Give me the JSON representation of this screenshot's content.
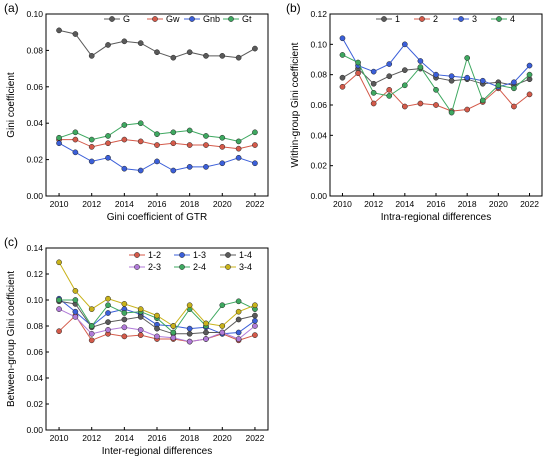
{
  "figure": {
    "panels": [
      {
        "panel_label": "(a)",
        "type": "line",
        "xlabel": "Gini coefficient of GTR",
        "ylabel": "Gini coefficient",
        "x": [
          2010,
          2011,
          2012,
          2013,
          2014,
          2015,
          2016,
          2017,
          2018,
          2019,
          2020,
          2021,
          2022
        ],
        "xlim": [
          2009.2,
          2022.8
        ],
        "xticks": [
          2010,
          2012,
          2014,
          2016,
          2018,
          2020,
          2022
        ],
        "ylim": [
          0.0,
          0.1
        ],
        "yticks": [
          0.0,
          0.02,
          0.04,
          0.06,
          0.08,
          0.1
        ],
        "ytick_decimals": 2,
        "legend_position": "top-right",
        "legend_cols": 4,
        "series": [
          {
            "name": "G",
            "color": "#5a5a5a",
            "values": [
              0.091,
              0.089,
              0.077,
              0.083,
              0.085,
              0.084,
              0.079,
              0.076,
              0.079,
              0.077,
              0.077,
              0.076,
              0.081
            ]
          },
          {
            "name": "Gw",
            "color": "#d45a4a",
            "values": [
              0.031,
              0.031,
              0.027,
              0.029,
              0.031,
              0.03,
              0.028,
              0.029,
              0.028,
              0.028,
              0.027,
              0.026,
              0.028
            ]
          },
          {
            "name": "Gnb",
            "color": "#3b5fd9",
            "values": [
              0.029,
              0.024,
              0.019,
              0.021,
              0.015,
              0.014,
              0.019,
              0.014,
              0.016,
              0.016,
              0.018,
              0.021,
              0.018
            ]
          },
          {
            "name": "Gt",
            "color": "#3ea860",
            "values": [
              0.032,
              0.035,
              0.031,
              0.033,
              0.039,
              0.04,
              0.034,
              0.035,
              0.036,
              0.033,
              0.032,
              0.03,
              0.035
            ]
          }
        ]
      },
      {
        "panel_label": "(b)",
        "type": "line",
        "xlabel": "Intra-regional differences",
        "ylabel": "Within-group Gini coefficient",
        "x": [
          2010,
          2011,
          2012,
          2013,
          2014,
          2015,
          2016,
          2017,
          2018,
          2019,
          2020,
          2021,
          2022
        ],
        "xlim": [
          2009.2,
          2022.8
        ],
        "xticks": [
          2010,
          2012,
          2014,
          2016,
          2018,
          2020,
          2022
        ],
        "ylim": [
          0.0,
          0.12
        ],
        "yticks": [
          0.0,
          0.02,
          0.04,
          0.06,
          0.08,
          0.1,
          0.12
        ],
        "ytick_decimals": 2,
        "legend_position": "top-right",
        "legend_cols": 4,
        "series": [
          {
            "name": "1",
            "color": "#5a5a5a",
            "values": [
              0.078,
              0.084,
              0.074,
              0.079,
              0.083,
              0.084,
              0.078,
              0.076,
              0.077,
              0.074,
              0.075,
              0.073,
              0.077
            ]
          },
          {
            "name": "2",
            "color": "#d45a4a",
            "values": [
              0.072,
              0.081,
              0.061,
              0.07,
              0.059,
              0.061,
              0.06,
              0.056,
              0.057,
              0.062,
              0.071,
              0.059,
              0.067
            ]
          },
          {
            "name": "3",
            "color": "#3b5fd9",
            "values": [
              0.104,
              0.086,
              0.082,
              0.087,
              0.1,
              0.089,
              0.08,
              0.079,
              0.078,
              0.076,
              0.072,
              0.075,
              0.086
            ]
          },
          {
            "name": "4",
            "color": "#3ea860",
            "values": [
              0.093,
              0.088,
              0.068,
              0.066,
              0.073,
              0.085,
              0.07,
              0.055,
              0.091,
              0.063,
              0.073,
              0.071,
              0.08
            ]
          }
        ]
      },
      {
        "panel_label": "(c)",
        "type": "line",
        "xlabel": "Inter-regional differences",
        "ylabel": "Between-group Gini coefficient",
        "x": [
          2010,
          2011,
          2012,
          2013,
          2014,
          2015,
          2016,
          2017,
          2018,
          2019,
          2020,
          2021,
          2022
        ],
        "xlim": [
          2009.2,
          2022.8
        ],
        "xticks": [
          2010,
          2012,
          2014,
          2016,
          2018,
          2020,
          2022
        ],
        "ylim": [
          0.0,
          0.14
        ],
        "yticks": [
          0.0,
          0.02,
          0.04,
          0.06,
          0.08,
          0.1,
          0.12,
          0.14
        ],
        "ytick_decimals": 2,
        "legend_position": "top-right",
        "legend_cols": 3,
        "series": [
          {
            "name": "1-2",
            "color": "#d45a4a",
            "values": [
              0.076,
              0.088,
              0.069,
              0.074,
              0.072,
              0.073,
              0.07,
              0.07,
              0.068,
              0.07,
              0.074,
              0.069,
              0.073
            ]
          },
          {
            "name": "1-3",
            "color": "#3b5fd9",
            "values": [
              0.101,
              0.091,
              0.08,
              0.09,
              0.093,
              0.089,
              0.081,
              0.08,
              0.078,
              0.079,
              0.074,
              0.075,
              0.084
            ]
          },
          {
            "name": "1-4",
            "color": "#5a5a5a",
            "values": [
              0.099,
              0.097,
              0.079,
              0.083,
              0.085,
              0.087,
              0.078,
              0.074,
              0.074,
              0.075,
              0.075,
              0.085,
              0.088
            ]
          },
          {
            "name": "2-3",
            "color": "#b07ad8",
            "values": [
              0.093,
              0.087,
              0.074,
              0.077,
              0.079,
              0.077,
              0.072,
              0.071,
              0.068,
              0.07,
              0.075,
              0.07,
              0.08
            ]
          },
          {
            "name": "2-4",
            "color": "#3ea860",
            "values": [
              0.1,
              0.1,
              0.08,
              0.096,
              0.09,
              0.091,
              0.086,
              0.075,
              0.093,
              0.08,
              0.096,
              0.099,
              0.093
            ]
          },
          {
            "name": "3-4",
            "color": "#c8b21a",
            "values": [
              0.129,
              0.107,
              0.093,
              0.101,
              0.097,
              0.093,
              0.088,
              0.08,
              0.096,
              0.082,
              0.08,
              0.091,
              0.096
            ]
          }
        ]
      }
    ]
  }
}
